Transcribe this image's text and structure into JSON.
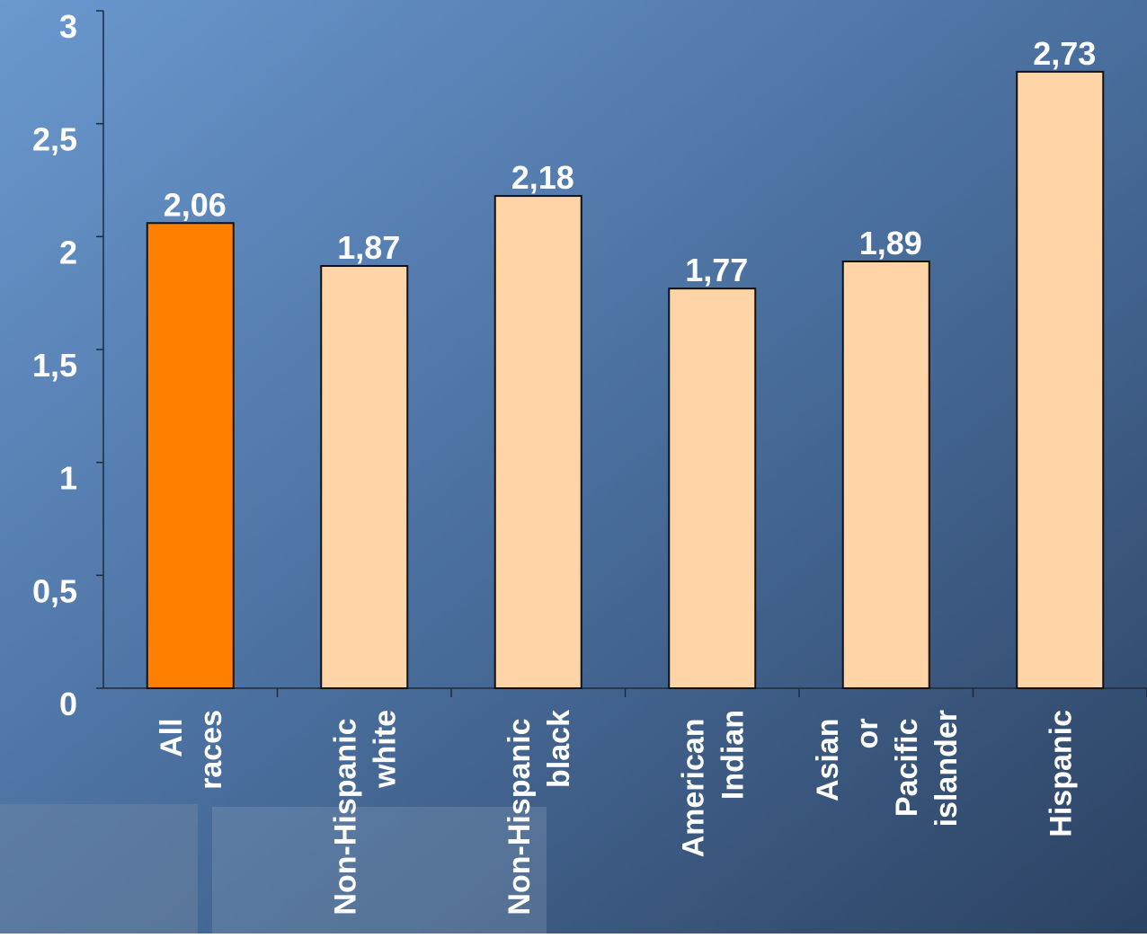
{
  "chart_data": {
    "type": "bar",
    "categories": [
      "All races",
      "Non-Hispanic white",
      "Non-Hispanic black",
      "American Indian",
      "Asian or Pacific islander",
      "Hispanic"
    ],
    "values": [
      2.06,
      1.87,
      2.18,
      1.77,
      1.89,
      2.73
    ],
    "value_labels": [
      "2,06",
      "1,87",
      "2,18",
      "1,77",
      "1,89",
      "2,73"
    ],
    "colors": [
      "#ff7f00",
      "#ffd5a8",
      "#ffd5a8",
      "#ffd5a8",
      "#ffd5a8",
      "#ffd5a8"
    ],
    "ylim": [
      0,
      3
    ],
    "yticks": [
      0,
      {
        "value": 0.5,
        "label": "0,5"
      },
      1,
      {
        "value": 1.5,
        "label": "1,5"
      },
      2,
      {
        "value": 2.5,
        "label": "2,5"
      },
      3
    ]
  }
}
